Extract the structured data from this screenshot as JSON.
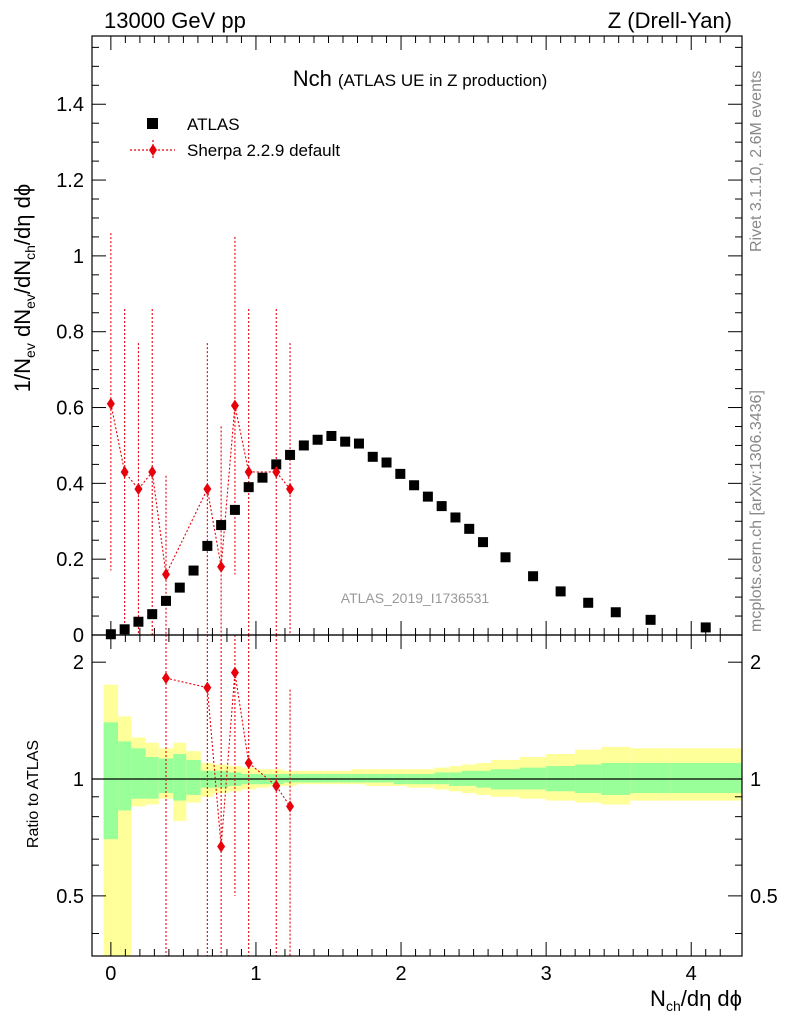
{
  "chart_data": {
    "type": "scatter",
    "top_left_label": "13000 GeV pp",
    "top_right_label": "Z (Drell-Yan)",
    "title_main": "Nch",
    "title_sub": "(ATLAS UE in Z production)",
    "watermark": "ATLAS_2019_I1736531",
    "side_label_top": "Rivet 3.1.10,  2.6M events",
    "side_label_bottom": "mcplots.cern.ch [arXiv:1306.3436]",
    "xlabel": "N_ch/dη dϕ",
    "ylabel_main": "1/N_ev dN_ev/dN_ch/dη dϕ",
    "ylabel_ratio": "Ratio to ATLAS",
    "xlim": [
      -0.13,
      4.35
    ],
    "ylim_main": [
      0,
      1.58
    ],
    "ylim_ratio": [
      0.35,
      2.35
    ],
    "x_ticks": [
      0,
      1,
      2,
      3,
      4
    ],
    "y_ticks_main": [
      0,
      0.2,
      0.4,
      0.6,
      0.8,
      1,
      1.2,
      1.4
    ],
    "y_ticks_ratio": [
      0.5,
      1,
      2
    ],
    "legend": [
      {
        "name": "ATLAS",
        "marker": "square",
        "color": "#000000"
      },
      {
        "name": "Sherpa 2.2.9 default",
        "marker": "diamond",
        "color": "#e8000b"
      }
    ],
    "series": [
      {
        "name": "ATLAS",
        "x": [
          0.0,
          0.095,
          0.19,
          0.285,
          0.38,
          0.475,
          0.57,
          0.665,
          0.76,
          0.855,
          0.95,
          1.045,
          1.14,
          1.235,
          1.33,
          1.425,
          1.52,
          1.615,
          1.71,
          1.805,
          1.9,
          1.995,
          2.09,
          2.185,
          2.28,
          2.375,
          2.47,
          2.565,
          2.72,
          2.91,
          3.1,
          3.29,
          3.48,
          3.72,
          4.1
        ],
        "y": [
          0.002,
          0.015,
          0.035,
          0.055,
          0.09,
          0.125,
          0.17,
          0.235,
          0.29,
          0.33,
          0.39,
          0.415,
          0.45,
          0.475,
          0.5,
          0.515,
          0.525,
          0.51,
          0.505,
          0.47,
          0.455,
          0.425,
          0.395,
          0.365,
          0.34,
          0.31,
          0.28,
          0.245,
          0.205,
          0.155,
          0.115,
          0.085,
          0.06,
          0.04,
          0.02
        ]
      },
      {
        "name": "Sherpa 2.2.9 default",
        "x": [
          0.0,
          0.095,
          0.19,
          0.285,
          0.38,
          0.665,
          0.76,
          0.855,
          0.95,
          1.14,
          1.235
        ],
        "y": [
          0.61,
          0.43,
          0.385,
          0.43,
          0.16,
          0.385,
          0.18,
          0.605,
          0.43,
          0.43,
          0.385
        ],
        "err_up": [
          1.06,
          0.86,
          0.77,
          0.86,
          0.42,
          0.77,
          0.55,
          1.05,
          0.86,
          0.86,
          0.77
        ],
        "err_down": [
          0.17,
          0.0,
          0.0,
          0.0,
          0.0,
          0.0,
          0.0,
          0.16,
          0.0,
          0.0,
          0.0
        ]
      }
    ],
    "ratio_series": {
      "name": "Sherpa 2.2.9 default",
      "x": [
        0.38,
        0.665,
        0.76,
        0.855,
        0.95,
        1.14,
        1.235
      ],
      "y": [
        1.82,
        1.72,
        0.67,
        1.88,
        1.1,
        0.96,
        0.85
      ],
      "err_up": [
        2.4,
        2.4,
        2.4,
        2.4,
        2.4,
        2.4,
        1.7
      ],
      "err_down": [
        0.35,
        0.35,
        0.35,
        0.5,
        0.35,
        0.35,
        0.35
      ]
    },
    "ratio_bands": {
      "x_edges": [
        -0.05,
        0.05,
        0.14,
        0.24,
        0.33,
        0.43,
        0.52,
        0.62,
        0.71,
        0.81,
        0.9,
        1.0,
        1.09,
        1.19,
        1.28,
        1.38,
        1.47,
        1.57,
        1.66,
        1.76,
        1.85,
        1.95,
        2.04,
        2.14,
        2.23,
        2.33,
        2.42,
        2.52,
        2.62,
        2.82,
        3.0,
        3.2,
        3.38,
        3.58,
        3.86,
        4.35
      ],
      "yellow_hi": [
        1.75,
        1.45,
        1.28,
        1.24,
        1.2,
        1.24,
        1.18,
        1.1,
        1.09,
        1.08,
        1.07,
        1.06,
        1.06,
        1.05,
        1.05,
        1.05,
        1.05,
        1.05,
        1.06,
        1.06,
        1.06,
        1.06,
        1.06,
        1.06,
        1.07,
        1.08,
        1.09,
        1.1,
        1.12,
        1.14,
        1.16,
        1.19,
        1.21,
        1.2,
        1.2
      ],
      "yellow_lo": [
        0.35,
        0.35,
        0.85,
        0.86,
        0.89,
        0.78,
        0.87,
        0.9,
        0.92,
        0.93,
        0.94,
        0.95,
        0.96,
        0.96,
        0.97,
        0.97,
        0.97,
        0.97,
        0.97,
        0.96,
        0.96,
        0.96,
        0.95,
        0.95,
        0.94,
        0.93,
        0.92,
        0.91,
        0.9,
        0.89,
        0.88,
        0.87,
        0.86,
        0.88,
        0.88
      ],
      "green_hi": [
        1.4,
        1.25,
        1.2,
        1.14,
        1.13,
        1.16,
        1.12,
        1.05,
        1.05,
        1.04,
        1.03,
        1.03,
        1.03,
        1.03,
        1.03,
        1.03,
        1.03,
        1.03,
        1.03,
        1.03,
        1.03,
        1.03,
        1.03,
        1.03,
        1.04,
        1.04,
        1.05,
        1.05,
        1.06,
        1.07,
        1.08,
        1.09,
        1.1,
        1.1,
        1.1
      ],
      "green_lo": [
        0.7,
        0.83,
        0.89,
        0.89,
        0.92,
        0.88,
        0.91,
        0.95,
        0.95,
        0.96,
        0.97,
        0.97,
        0.97,
        0.98,
        0.98,
        0.98,
        0.98,
        0.98,
        0.98,
        0.98,
        0.98,
        0.97,
        0.97,
        0.97,
        0.97,
        0.96,
        0.96,
        0.95,
        0.94,
        0.94,
        0.93,
        0.92,
        0.91,
        0.92,
        0.92
      ]
    },
    "colors": {
      "yellow": "#ffff99",
      "green": "#99ff99",
      "sherpa": "#e8000b",
      "atlas": "#000000",
      "side_text": "#888888",
      "watermark": "#999999"
    }
  }
}
